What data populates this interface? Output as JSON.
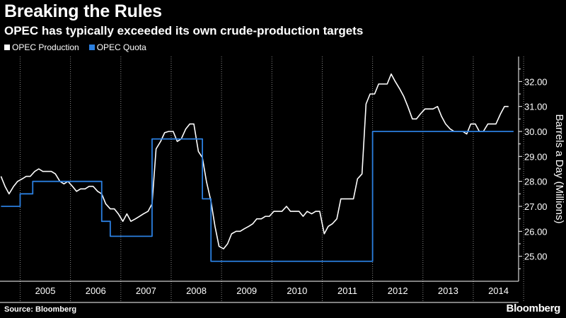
{
  "title": "Breaking the Rules",
  "subtitle": "OPEC has typically exceeded its own crude-production targets",
  "legend": [
    {
      "name": "OPEC Production",
      "color": "#ffffff"
    },
    {
      "name": "OPEC Quota",
      "color": "#2b7fe0"
    }
  ],
  "source": "Source: Bloomberg",
  "brand": "Bloomberg",
  "chart_data": {
    "type": "line",
    "ylabel": "Barrels a Day (Millions)",
    "ylim": [
      24.0,
      33.0
    ],
    "yticks": [
      "25.00",
      "26.00",
      "27.00",
      "28.00",
      "29.00",
      "30.00",
      "31.00",
      "32.00"
    ],
    "yaxis_position": "right",
    "xlim": [
      2004.6,
      2014.9
    ],
    "xlabels": [
      "2005",
      "2006",
      "2007",
      "2008",
      "2009",
      "2010",
      "2011",
      "2012",
      "2013",
      "2014"
    ],
    "grid": "vertical dotted at year boundaries",
    "legend_placement": "top-left",
    "series": [
      {
        "name": "OPEC Production",
        "color": "#ffffff",
        "x": [
          2004.62,
          2004.7,
          2004.78,
          2004.87,
          2004.95,
          2005.04,
          2005.12,
          2005.2,
          2005.29,
          2005.37,
          2005.45,
          2005.54,
          2005.62,
          2005.7,
          2005.79,
          2005.87,
          2005.95,
          2006.04,
          2006.12,
          2006.2,
          2006.29,
          2006.37,
          2006.45,
          2006.54,
          2006.62,
          2006.7,
          2006.79,
          2006.87,
          2006.95,
          2007.04,
          2007.12,
          2007.2,
          2007.29,
          2007.37,
          2007.45,
          2007.54,
          2007.62,
          2007.7,
          2007.79,
          2007.87,
          2007.95,
          2008.04,
          2008.12,
          2008.2,
          2008.29,
          2008.37,
          2008.45,
          2008.54,
          2008.62,
          2008.7,
          2008.79,
          2008.87,
          2008.95,
          2009.04,
          2009.12,
          2009.2,
          2009.29,
          2009.37,
          2009.45,
          2009.54,
          2009.62,
          2009.7,
          2009.79,
          2009.87,
          2009.95,
          2010.04,
          2010.12,
          2010.2,
          2010.29,
          2010.37,
          2010.45,
          2010.54,
          2010.62,
          2010.7,
          2010.79,
          2010.87,
          2010.95,
          2011.04,
          2011.12,
          2011.2,
          2011.29,
          2011.37,
          2011.45,
          2011.54,
          2011.62,
          2011.7,
          2011.79,
          2011.87,
          2011.95,
          2012.04,
          2012.12,
          2012.2,
          2012.29,
          2012.37,
          2012.45,
          2012.54,
          2012.62,
          2012.7,
          2012.79,
          2012.87,
          2012.95,
          2013.04,
          2013.12,
          2013.2,
          2013.29,
          2013.37,
          2013.45,
          2013.54,
          2013.62,
          2013.7,
          2013.79,
          2013.87,
          2013.95,
          2014.04,
          2014.12,
          2014.2,
          2014.29,
          2014.37,
          2014.45,
          2014.54,
          2014.62,
          2014.7
        ],
        "values": [
          28.2,
          27.8,
          27.5,
          27.8,
          28.0,
          28.1,
          28.2,
          28.2,
          28.4,
          28.5,
          28.4,
          28.4,
          28.4,
          28.3,
          28.0,
          27.9,
          28.0,
          27.8,
          27.6,
          27.7,
          27.7,
          27.8,
          27.8,
          27.6,
          27.5,
          27.1,
          26.9,
          26.9,
          26.7,
          26.4,
          26.7,
          26.4,
          26.5,
          26.6,
          26.7,
          26.8,
          27.1,
          29.3,
          29.6,
          29.95,
          30.0,
          30.0,
          29.6,
          29.7,
          30.1,
          30.3,
          30.3,
          29.2,
          28.95,
          28.0,
          27.2,
          26.2,
          25.4,
          25.3,
          25.5,
          25.9,
          26.0,
          26.0,
          26.1,
          26.2,
          26.3,
          26.5,
          26.5,
          26.6,
          26.6,
          26.8,
          26.8,
          26.8,
          27.0,
          26.8,
          26.8,
          26.8,
          26.6,
          26.8,
          26.7,
          26.8,
          26.8,
          25.9,
          26.2,
          26.3,
          26.5,
          27.3,
          27.3,
          27.3,
          27.3,
          28.1,
          28.3,
          31.1,
          31.5,
          31.5,
          31.9,
          31.9,
          31.9,
          32.3,
          32.0,
          31.7,
          31.4,
          31.0,
          30.5,
          30.5,
          30.7,
          30.9,
          30.9,
          30.9,
          31.0,
          30.6,
          30.3,
          30.1,
          30.0,
          30.0,
          30.0,
          29.9,
          30.3,
          30.3,
          30.0,
          30.0,
          30.3,
          30.3,
          30.3,
          30.7,
          31.0,
          31.0
        ]
      },
      {
        "name": "OPEC Quota",
        "color": "#2b7fe0",
        "step": true,
        "x": [
          2004.62,
          2004.75,
          2004.87,
          2005.0,
          2005.12,
          2005.25,
          2005.29,
          2005.37,
          2005.5,
          2005.62,
          2005.75,
          2005.87,
          2006.0,
          2006.12,
          2006.25,
          2006.37,
          2006.5,
          2006.62,
          2006.7,
          2006.79,
          2006.87,
          2007.0,
          2007.12,
          2007.25,
          2007.37,
          2007.5,
          2007.62,
          2007.7,
          2007.79,
          2007.87,
          2008.0,
          2008.12,
          2008.25,
          2008.37,
          2008.5,
          2008.62,
          2008.7,
          2008.79,
          2008.87,
          2009.0,
          2011.95,
          2012.0,
          2014.8
        ],
        "values": [
          27.0,
          27.0,
          27.0,
          27.5,
          27.5,
          28.0,
          28.0,
          28.0,
          28.0,
          28.0,
          28.0,
          28.0,
          28.0,
          28.0,
          28.0,
          28.0,
          28.0,
          26.4,
          26.4,
          25.8,
          25.8,
          25.8,
          25.8,
          25.8,
          25.8,
          25.8,
          29.7,
          29.7,
          29.7,
          29.7,
          29.7,
          29.7,
          29.7,
          29.7,
          29.7,
          27.3,
          27.3,
          24.8,
          24.8,
          24.8,
          24.8,
          30.0,
          30.0
        ]
      }
    ]
  }
}
